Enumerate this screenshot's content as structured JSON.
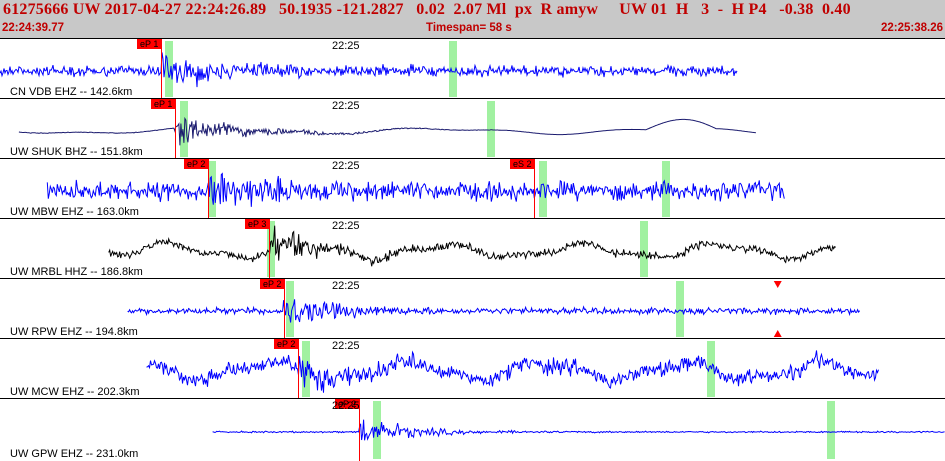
{
  "header": {
    "title": "61275666 UW 2017-04-27 22:24:26.89   50.1935 -121.2827   0.02  2.07 Ml  px  R amyw     UW 01  H   3  -  H P4   -0.38  0.40",
    "start_time": "22:24:39.77",
    "timespan": "Timespan=  58 s",
    "end_time": "22:25:38.26"
  },
  "time_marker": "22:25",
  "colors": {
    "blue_trace": "#0000ff",
    "navy_trace": "#1a1a6e",
    "black_trace": "#000000",
    "pick": "#ff0000",
    "header_text": "#c00000",
    "header_bg": "#c8c8c8",
    "window": "#90ee90"
  },
  "traces": [
    {
      "label": "CN VDB EHZ -- 142.6km",
      "color": "blue",
      "start": 0.0,
      "end": 0.78,
      "pick_label": "eP 1",
      "pick_pos": 0.17,
      "windows": [
        0.175,
        0.475
      ],
      "amp": 0.35,
      "event_amp": 1.0,
      "style": "noise"
    },
    {
      "label": "UW SHUK BHZ -- 151.8km",
      "color": "navy",
      "start": 0.02,
      "end": 0.8,
      "pick_label": "eP 1",
      "pick_pos": 0.185,
      "windows": [
        0.19,
        0.515
      ],
      "amp": 0.08,
      "event_amp": 0.9,
      "style": "smooth"
    },
    {
      "label": "UW MBW EHZ -- 163.0km",
      "color": "blue",
      "start": 0.05,
      "end": 0.83,
      "pick_label": "eP 2",
      "pick_pos": 0.22,
      "windows": [
        0.22,
        0.57,
        0.7
      ],
      "amp": 0.6,
      "event_amp": 1.0,
      "style": "noise",
      "extra_pick_label": "eS 2",
      "extra_pick_pos": 0.565
    },
    {
      "label": "UW MRBL HHZ -- 186.8km",
      "color": "black",
      "start": 0.115,
      "end": 0.885,
      "pick_label": "eP 3",
      "pick_pos": 0.285,
      "windows": [
        0.283,
        0.677
      ],
      "amp": 0.25,
      "event_amp": 1.0,
      "style": "wavy"
    },
    {
      "label": "UW RPW EHZ -- 194.8km",
      "color": "blue",
      "start": 0.135,
      "end": 0.91,
      "pick_label": "eP 2",
      "pick_pos": 0.3,
      "windows": [
        0.303,
        0.715
      ],
      "amp": 0.2,
      "event_amp": 1.0,
      "style": "noise",
      "triangle_pos": 0.823
    },
    {
      "label": "UW MCW EHZ -- 202.3km",
      "color": "blue",
      "start": 0.155,
      "end": 0.93,
      "pick_label": "eP 2",
      "pick_pos": 0.315,
      "windows": [
        0.32,
        0.748
      ],
      "amp": 0.5,
      "event_amp": 0.8,
      "style": "wavy"
    },
    {
      "label": "UW GPW EHZ -- 231.0km",
      "color": "blue",
      "start": 0.225,
      "end": 1.0,
      "pick_label": "eP 2",
      "pick_pos": 0.38,
      "windows": [
        0.395,
        0.875
      ],
      "amp": 0.05,
      "event_amp": 1.0,
      "style": "noise"
    }
  ]
}
